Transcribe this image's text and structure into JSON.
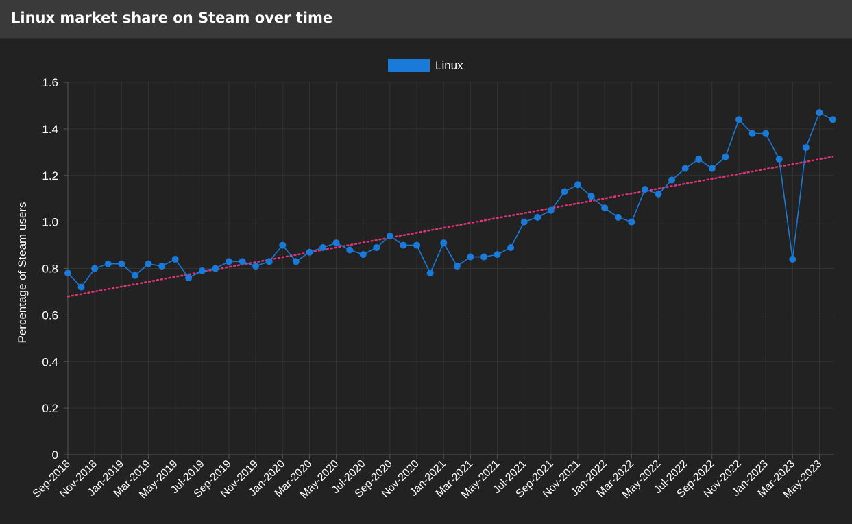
{
  "header": {
    "title": "Linux market share on Steam over time"
  },
  "colors": {
    "series": "#1a7ad9",
    "trend": "#e0347a",
    "grid": "#333333",
    "text": "#ffffff"
  },
  "chart_data": {
    "type": "line",
    "title": "",
    "ylabel": "Percentage of Steam users",
    "xlabel": "",
    "ylim": [
      0,
      1.6
    ],
    "yticks": [
      0,
      0.2,
      0.4,
      0.6,
      0.8,
      1.0,
      1.2,
      1.4,
      1.6
    ],
    "ytick_labels": [
      "0",
      "0.2",
      "0.4",
      "0.6",
      "0.8",
      "1.0",
      "1.2",
      "1.4",
      "1.6"
    ],
    "grid": true,
    "legend": "top-center",
    "categories": [
      "Sep-2018",
      "Oct-2018",
      "Nov-2018",
      "Dec-2018",
      "Jan-2019",
      "Feb-2019",
      "Mar-2019",
      "Apr-2019",
      "May-2019",
      "Jun-2019",
      "Jul-2019",
      "Aug-2019",
      "Sep-2019",
      "Oct-2019",
      "Nov-2019",
      "Dec-2019",
      "Jan-2020",
      "Feb-2020",
      "Mar-2020",
      "Apr-2020",
      "May-2020",
      "Jun-2020",
      "Jul-2020",
      "Aug-2020",
      "Sep-2020",
      "Oct-2020",
      "Nov-2020",
      "Dec-2020",
      "Jan-2021",
      "Feb-2021",
      "Mar-2021",
      "Apr-2021",
      "May-2021",
      "Jun-2021",
      "Jul-2021",
      "Aug-2021",
      "Sep-2021",
      "Oct-2021",
      "Nov-2021",
      "Dec-2021",
      "Jan-2022",
      "Feb-2022",
      "Mar-2022",
      "Apr-2022",
      "May-2022",
      "Jun-2022",
      "Jul-2022",
      "Aug-2022",
      "Sep-2022",
      "Oct-2022",
      "Nov-2022",
      "Dec-2022",
      "Jan-2023",
      "Feb-2023",
      "Mar-2023",
      "Apr-2023",
      "May-2023",
      "Jun-2023"
    ],
    "xtick_labels": [
      "Sep-2018",
      "Nov-2018",
      "Jan-2019",
      "Mar-2019",
      "May-2019",
      "Jul-2019",
      "Sep-2019",
      "Nov-2019",
      "Jan-2020",
      "Mar-2020",
      "May-2020",
      "Jul-2020",
      "Sep-2020",
      "Nov-2020",
      "Jan-2021",
      "Mar-2021",
      "May-2021",
      "Jul-2021",
      "Sep-2021",
      "Nov-2021",
      "Jan-2022",
      "Mar-2022",
      "May-2022",
      "Jul-2022",
      "Sep-2022",
      "Nov-2022",
      "Jan-2023",
      "Mar-2023",
      "May-2023"
    ],
    "series": [
      {
        "name": "Linux",
        "values": [
          0.78,
          0.72,
          0.8,
          0.82,
          0.82,
          0.77,
          0.82,
          0.81,
          0.84,
          0.76,
          0.79,
          0.8,
          0.83,
          0.83,
          0.81,
          0.83,
          0.9,
          0.83,
          0.87,
          0.89,
          0.91,
          0.88,
          0.86,
          0.89,
          0.94,
          0.9,
          0.9,
          0.78,
          0.91,
          0.81,
          0.85,
          0.85,
          0.86,
          0.89,
          1.0,
          1.02,
          1.05,
          1.13,
          1.16,
          1.11,
          1.06,
          1.02,
          1.0,
          1.14,
          1.12,
          1.18,
          1.23,
          1.27,
          1.23,
          1.28,
          1.44,
          1.38,
          1.38,
          1.27,
          0.84,
          1.32,
          1.47,
          1.44
        ]
      }
    ],
    "trendline": {
      "start": 0.68,
      "end": 1.28
    }
  }
}
